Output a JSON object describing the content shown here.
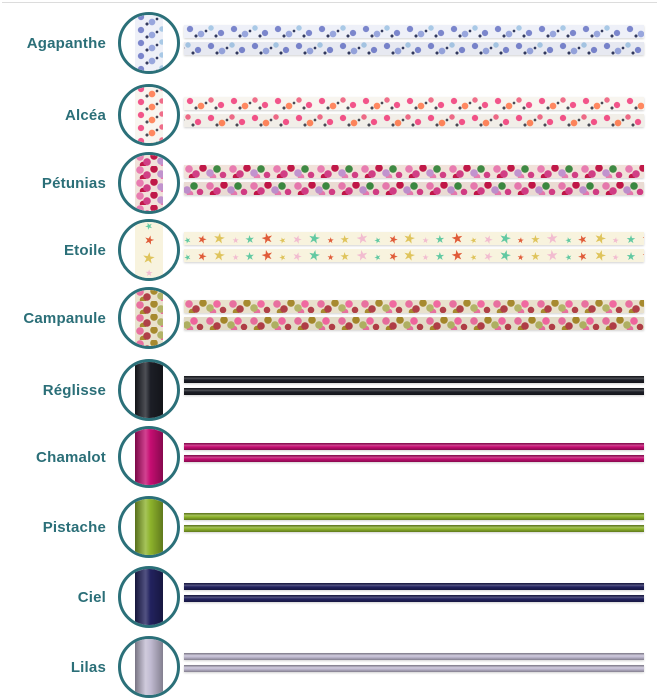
{
  "page": {
    "background": "#ffffff",
    "top_divider_color": "#dcdcdc"
  },
  "theme": {
    "label_color": "#2b6f78",
    "circle_border_color": "#2b7079"
  },
  "rows": [
    {
      "label": "Agapanthe",
      "type": "ribbon",
      "pattern": "floral",
      "base": "#eef0f8",
      "colors": [
        "#7b86cc",
        "#98a6dd",
        "#a9c9e6",
        "#5a68b4",
        "#333a5e"
      ]
    },
    {
      "label": "Alcéa",
      "type": "ribbon",
      "pattern": "floral",
      "base": "#f8f5ef",
      "colors": [
        "#f2558a",
        "#ff8860",
        "#ef6e8a",
        "#a9b56a",
        "#4a4a55"
      ]
    },
    {
      "label": "Pétunias",
      "type": "ribbon",
      "pattern": "floral-dense",
      "base": "#f1e2da",
      "colors": [
        "#e87cb0",
        "#d13f85",
        "#c01848",
        "#c193ce",
        "#3f8a44"
      ]
    },
    {
      "label": "Etoile",
      "type": "ribbon",
      "pattern": "stars",
      "base": "#f8f3de",
      "colors": [
        "#62c9a2",
        "#e05b38",
        "#dfc45c",
        "#f2bcd0"
      ]
    },
    {
      "label": "Campanule",
      "type": "ribbon",
      "pattern": "floral-dense",
      "base": "#e9e2cd",
      "colors": [
        "#e8709f",
        "#b04048",
        "#a78a2f",
        "#b3b468",
        "#f06aa0"
      ]
    },
    {
      "label": "Réglisse",
      "type": "cord",
      "pattern": "solid",
      "colors": [
        "#1c1e26"
      ]
    },
    {
      "label": "Chamalot",
      "type": "cord",
      "pattern": "solid",
      "colors": [
        "#c60d72"
      ]
    },
    {
      "label": "Pistache",
      "type": "cord",
      "pattern": "solid",
      "colors": [
        "#8db32b"
      ]
    },
    {
      "label": "Ciel",
      "type": "cord",
      "pattern": "solid",
      "colors": [
        "#22225f"
      ]
    },
    {
      "label": "Lilas",
      "type": "cord",
      "pattern": "solid",
      "colors": [
        "#c2bcd3"
      ]
    }
  ]
}
